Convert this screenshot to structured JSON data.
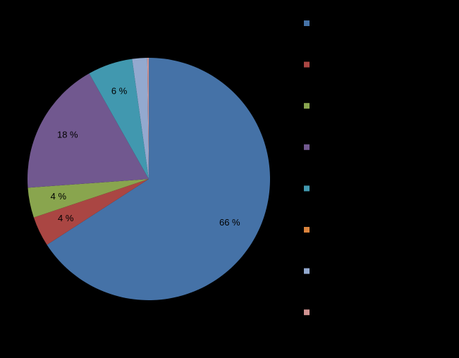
{
  "chart_data": {
    "type": "pie",
    "values": [
      66,
      4,
      4,
      18,
      6,
      0,
      2,
      0.2
    ],
    "value_labels": [
      "66 %",
      "4 %",
      "4 %",
      "18 %",
      "6 %",
      null,
      null,
      null
    ],
    "colors": [
      "#4572a7",
      "#aa4643",
      "#89a54e",
      "#71588f",
      "#4198af",
      "#db843d",
      "#93a9cf",
      "#d19392"
    ],
    "legend": "right"
  }
}
